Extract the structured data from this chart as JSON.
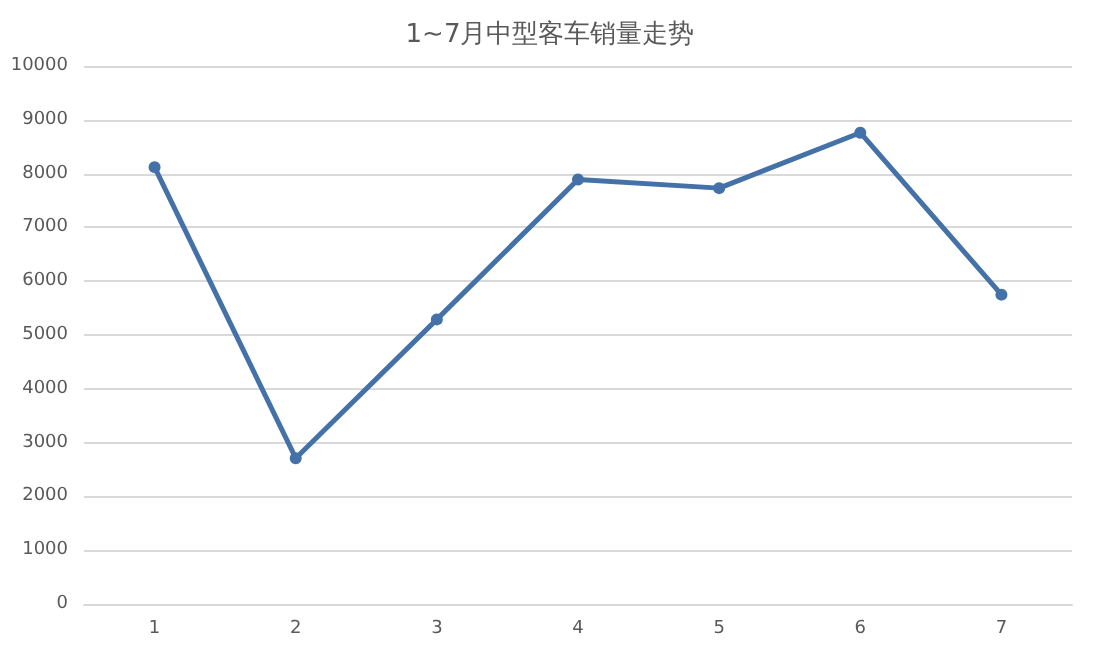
{
  "chart_data": {
    "type": "line",
    "title": "1~7月中型客车销量走势",
    "categories": [
      "1",
      "2",
      "3",
      "4",
      "5",
      "6",
      "7"
    ],
    "series": [
      {
        "color": "#4472a8",
        "values": [
          8120,
          2710,
          5290,
          7890,
          7730,
          8760,
          5750
        ]
      }
    ],
    "ylim": [
      0,
      10000
    ],
    "yticks": [
      0,
      1000,
      2000,
      3000,
      4000,
      5000,
      6000,
      7000,
      8000,
      9000,
      10000
    ],
    "grid": "y",
    "marker": "circle",
    "line_style": "solid"
  }
}
